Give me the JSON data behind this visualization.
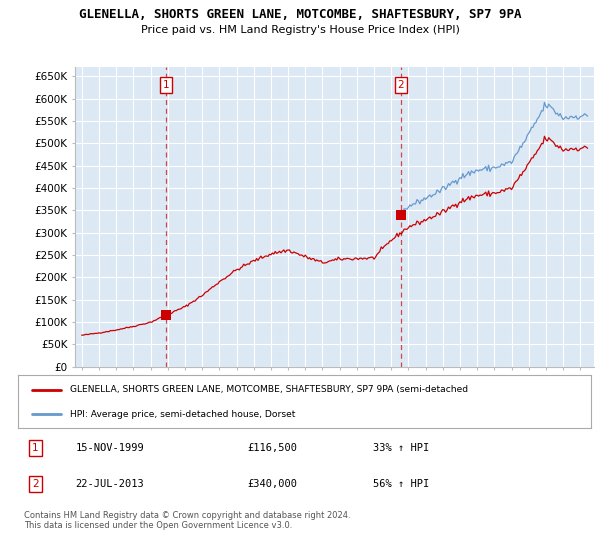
{
  "title": "GLENELLA, SHORTS GREEN LANE, MOTCOMBE, SHAFTESBURY, SP7 9PA",
  "subtitle": "Price paid vs. HM Land Registry's House Price Index (HPI)",
  "background_color": "#ffffff",
  "plot_bg_color": "#dce9f5",
  "grid_color": "#ffffff",
  "sale1_year_float": 1999.88,
  "sale1_value": 116500,
  "sale1_label": "1",
  "sale2_year_float": 2013.55,
  "sale2_value": 340000,
  "sale2_label": "2",
  "red_line_color": "#cc0000",
  "blue_line_color": "#6699cc",
  "ylim": [
    0,
    670000
  ],
  "yticks": [
    0,
    50000,
    100000,
    150000,
    200000,
    250000,
    300000,
    350000,
    400000,
    450000,
    500000,
    550000,
    600000,
    650000
  ],
  "ytick_labels": [
    "£0",
    "£50K",
    "£100K",
    "£150K",
    "£200K",
    "£250K",
    "£300K",
    "£350K",
    "£400K",
    "£450K",
    "£500K",
    "£550K",
    "£600K",
    "£650K"
  ],
  "xlim_start": 1994.6,
  "xlim_end": 2024.8,
  "xtick_years": [
    1995,
    1996,
    1997,
    1998,
    1999,
    2000,
    2001,
    2002,
    2003,
    2004,
    2005,
    2006,
    2007,
    2008,
    2009,
    2010,
    2011,
    2012,
    2013,
    2014,
    2015,
    2016,
    2017,
    2018,
    2019,
    2020,
    2021,
    2022,
    2023,
    2024
  ],
  "legend_red_label": "GLENELLA, SHORTS GREEN LANE, MOTCOMBE, SHAFTESBURY, SP7 9PA (semi-detached",
  "legend_blue_label": "HPI: Average price, semi-detached house, Dorset",
  "table_row1": [
    "1",
    "15-NOV-1999",
    "£116,500",
    "33% ↑ HPI"
  ],
  "table_row2": [
    "2",
    "22-JUL-2013",
    "£340,000",
    "56% ↑ HPI"
  ],
  "footnote": "Contains HM Land Registry data © Crown copyright and database right 2024.\nThis data is licensed under the Open Government Licence v3.0."
}
